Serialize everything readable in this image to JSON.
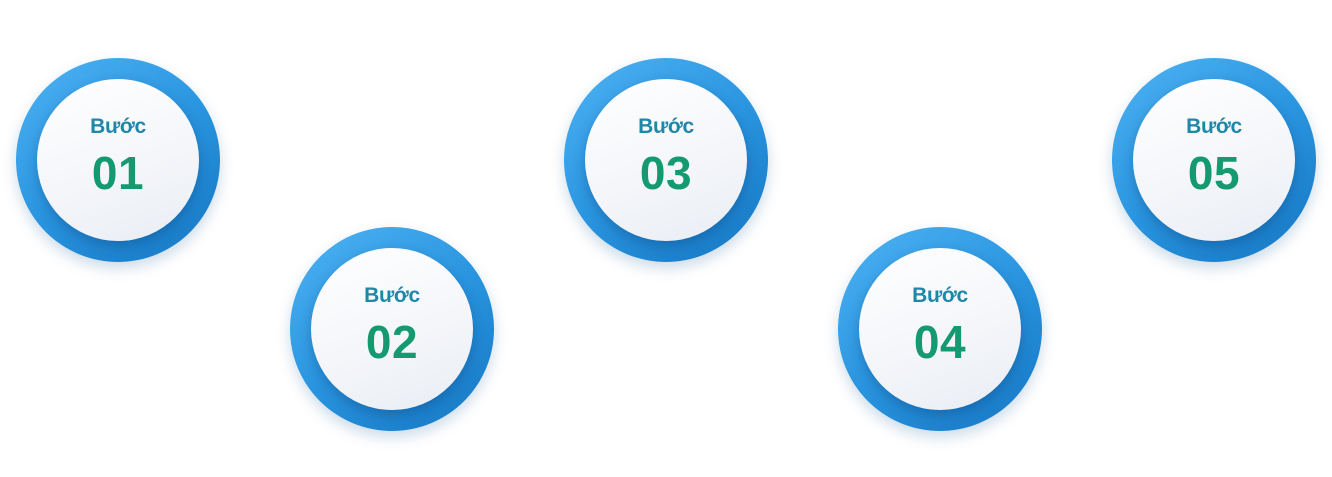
{
  "colors": {
    "label_color": "#1e88a8",
    "number_color": "#149a6e",
    "ring_light": "#4fb3f4",
    "ring_dark": "#1576c2"
  },
  "steps": [
    {
      "label": "Bước",
      "number": "01"
    },
    {
      "label": "Bước",
      "number": "02"
    },
    {
      "label": "Bước",
      "number": "03"
    },
    {
      "label": "Bước",
      "number": "04"
    },
    {
      "label": "Bước",
      "number": "05"
    }
  ]
}
